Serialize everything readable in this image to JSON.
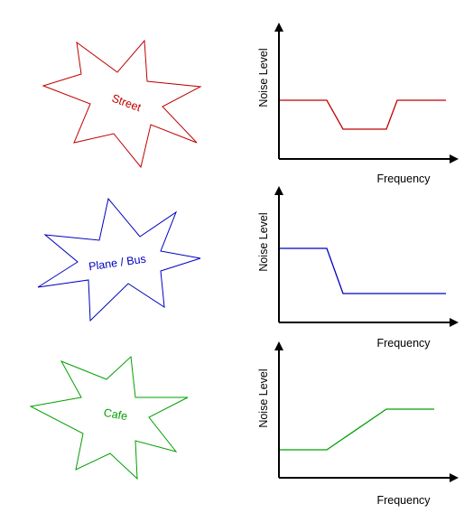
{
  "rows": [
    {
      "id": "street",
      "label": "Street",
      "color": "#c00000",
      "chart": {
        "ylabel": "Noise Level",
        "xlabel": "Frequency",
        "profile": "high-dip-recover"
      }
    },
    {
      "id": "plane-bus",
      "label": "Plane / Bus",
      "color": "#0000c0",
      "chart": {
        "ylabel": "Noise Level",
        "xlabel": "Frequency",
        "profile": "high-then-low"
      }
    },
    {
      "id": "cafe",
      "label": "Cafe",
      "color": "#00a000",
      "chart": {
        "ylabel": "Noise Level",
        "xlabel": "Frequency",
        "profile": "low-then-high"
      }
    }
  ],
  "colors": {
    "axis": "#000000"
  }
}
